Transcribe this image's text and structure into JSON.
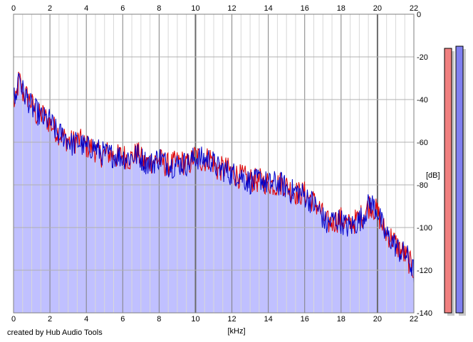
{
  "credit": "created by Hub Audio Tools",
  "chart_data": {
    "type": "area",
    "xlabel": "[kHz]",
    "ylabel": "[dB]",
    "xlim": [
      0,
      22
    ],
    "ylim": [
      -140,
      0
    ],
    "x_ticks": [
      0,
      2,
      4,
      6,
      8,
      10,
      12,
      14,
      16,
      18,
      20,
      22
    ],
    "y_ticks": [
      0,
      -20,
      -40,
      -60,
      -80,
      -100,
      -120,
      -140
    ],
    "grid": true,
    "colors": {
      "fill": "#c0c0ff",
      "left_channel": "#e00000",
      "right_channel": "#0000c8",
      "grid": "#b0b0b0",
      "major_grid": "#808080"
    },
    "series": [
      {
        "color": "#e00000",
        "x": [
          0.0,
          0.1,
          0.3,
          0.5,
          0.8,
          1.0,
          1.3,
          1.6,
          2.0,
          2.4,
          2.8,
          3.2,
          3.6,
          4.0,
          4.4,
          4.8,
          5.2,
          5.6,
          6.0,
          6.4,
          6.8,
          7.2,
          7.6,
          8.0,
          8.4,
          8.8,
          9.2,
          9.6,
          10.0,
          10.4,
          10.8,
          11.2,
          11.6,
          12.0,
          12.4,
          12.8,
          13.2,
          13.6,
          14.0,
          14.4,
          14.8,
          15.2,
          15.6,
          16.0,
          16.4,
          16.8,
          17.2,
          17.6,
          18.0,
          18.4,
          18.8,
          19.2,
          19.6,
          20.0,
          20.4,
          20.8,
          21.2,
          21.6,
          22.0
        ],
        "values": [
          -40,
          -43,
          -30,
          -37,
          -39,
          -42,
          -48,
          -47,
          -51,
          -55,
          -58,
          -60,
          -59,
          -62,
          -63,
          -66,
          -65,
          -67,
          -66,
          -68,
          -65,
          -70,
          -69,
          -68,
          -71,
          -70,
          -69,
          -71,
          -66,
          -69,
          -67,
          -73,
          -72,
          -74,
          -76,
          -77,
          -78,
          -78,
          -79,
          -80,
          -79,
          -82,
          -84,
          -84,
          -87,
          -91,
          -98,
          -97,
          -96,
          -99,
          -97,
          -94,
          -89,
          -93,
          -102,
          -105,
          -110,
          -114,
          -120
        ]
      },
      {
        "color": "#0000c8",
        "x": [
          0.0,
          0.1,
          0.3,
          0.5,
          0.8,
          1.0,
          1.3,
          1.6,
          2.0,
          2.4,
          2.8,
          3.2,
          3.6,
          4.0,
          4.4,
          4.8,
          5.2,
          5.6,
          6.0,
          6.4,
          6.8,
          7.2,
          7.6,
          8.0,
          8.4,
          8.8,
          9.2,
          9.6,
          10.0,
          10.4,
          10.8,
          11.2,
          11.6,
          12.0,
          12.4,
          12.8,
          13.2,
          13.6,
          14.0,
          14.4,
          14.8,
          15.2,
          15.6,
          16.0,
          16.4,
          16.8,
          17.2,
          17.6,
          18.0,
          18.4,
          18.8,
          19.2,
          19.6,
          20.0,
          20.4,
          20.8,
          21.2,
          21.6,
          22.0
        ],
        "values": [
          -38,
          -41,
          -27,
          -36,
          -40,
          -44,
          -46,
          -49,
          -50,
          -56,
          -57,
          -61,
          -60,
          -63,
          -62,
          -65,
          -66,
          -66,
          -67,
          -67,
          -66,
          -69,
          -70,
          -67,
          -70,
          -71,
          -70,
          -70,
          -67,
          -68,
          -68,
          -72,
          -73,
          -75,
          -75,
          -78,
          -79,
          -77,
          -80,
          -79,
          -80,
          -83,
          -83,
          -85,
          -88,
          -92,
          -99,
          -96,
          -97,
          -100,
          -98,
          -95,
          -88,
          -92,
          -103,
          -106,
          -111,
          -113,
          -121
        ]
      }
    ],
    "level_meters": [
      {
        "channel": "left",
        "color": "#f08080",
        "top_db": -16
      },
      {
        "channel": "right",
        "color": "#8080f0",
        "top_db": -15
      }
    ]
  }
}
